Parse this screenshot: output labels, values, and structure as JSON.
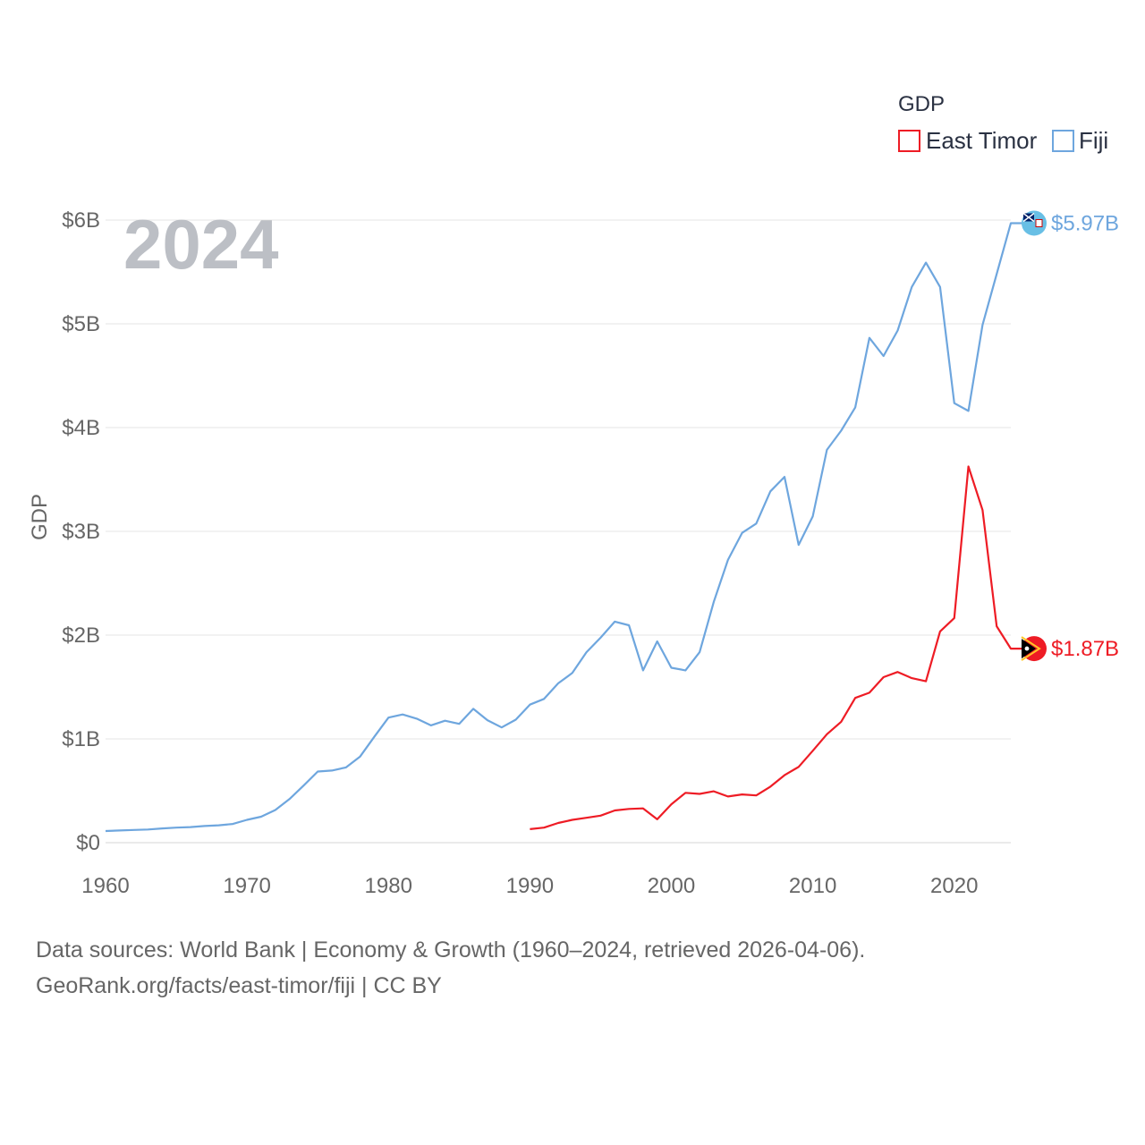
{
  "chart_data": {
    "type": "line",
    "ylabel": "GDP",
    "xlim": [
      1960,
      2024
    ],
    "ylim": [
      0,
      6000000000
    ],
    "x_ticks": [
      1960,
      1970,
      1980,
      1990,
      2000,
      2010,
      2020
    ],
    "x_tick_labels": [
      "1960",
      "1970",
      "1980",
      "1990",
      "2000",
      "2010",
      "2020"
    ],
    "y_ticks": [
      0,
      1000000000,
      2000000000,
      3000000000,
      4000000000,
      5000000000,
      6000000000
    ],
    "y_tick_labels": [
      "$0",
      "$1B",
      "$2B",
      "$3B",
      "$4B",
      "$5B",
      "$6B"
    ],
    "year_label": "2024",
    "legend": {
      "title": "GDP",
      "position": "top-right"
    },
    "grid": true,
    "series": [
      {
        "name": "East Timor",
        "color": "#ee1c25",
        "end_label": "$1.87B",
        "flag_icon": "east-timor-flag-icon",
        "x": [
          1990,
          1991,
          1992,
          1993,
          1994,
          1995,
          1996,
          1997,
          1998,
          1999,
          2000,
          2001,
          2002,
          2003,
          2004,
          2005,
          2006,
          2007,
          2008,
          2009,
          2010,
          2011,
          2012,
          2013,
          2014,
          2015,
          2016,
          2017,
          2018,
          2019,
          2020,
          2021,
          2022,
          2023,
          2024
        ],
        "values": [
          130000000,
          145000000,
          190000000,
          220000000,
          240000000,
          260000000,
          310000000,
          325000000,
          330000000,
          225000000,
          370000000,
          480000000,
          470000000,
          495000000,
          445000000,
          465000000,
          455000000,
          540000000,
          650000000,
          730000000,
          885000000,
          1045000000,
          1165000000,
          1395000000,
          1445000000,
          1595000000,
          1645000000,
          1585000000,
          1555000000,
          2035000000,
          2165000000,
          3625000000,
          3205000000,
          2085000000,
          1870000000
        ]
      },
      {
        "name": "Fiji",
        "color": "#6ea6de",
        "end_label": "$5.97B",
        "flag_icon": "fiji-flag-icon",
        "x": [
          1960,
          1961,
          1962,
          1963,
          1964,
          1965,
          1966,
          1967,
          1968,
          1969,
          1970,
          1971,
          1972,
          1973,
          1974,
          1975,
          1976,
          1977,
          1978,
          1979,
          1980,
          1981,
          1982,
          1983,
          1984,
          1985,
          1986,
          1987,
          1988,
          1989,
          1990,
          1991,
          1992,
          1993,
          1994,
          1995,
          1996,
          1997,
          1998,
          1999,
          2000,
          2001,
          2002,
          2003,
          2004,
          2005,
          2006,
          2007,
          2008,
          2009,
          2010,
          2011,
          2012,
          2013,
          2014,
          2015,
          2016,
          2017,
          2018,
          2019,
          2020,
          2021,
          2022,
          2023,
          2024
        ],
        "values": [
          112000000,
          117000000,
          122000000,
          127000000,
          137000000,
          145000000,
          150000000,
          160000000,
          167000000,
          180000000,
          220000000,
          250000000,
          315000000,
          420000000,
          550000000,
          685000000,
          695000000,
          725000000,
          830000000,
          1020000000,
          1205000000,
          1235000000,
          1195000000,
          1130000000,
          1175000000,
          1145000000,
          1290000000,
          1180000000,
          1110000000,
          1185000000,
          1330000000,
          1385000000,
          1535000000,
          1635000000,
          1835000000,
          1975000000,
          2130000000,
          2095000000,
          1660000000,
          1940000000,
          1685000000,
          1660000000,
          1835000000,
          2320000000,
          2725000000,
          2985000000,
          3075000000,
          3385000000,
          3525000000,
          2870000000,
          3145000000,
          3785000000,
          3970000000,
          4195000000,
          4865000000,
          4690000000,
          4935000000,
          5355000000,
          5590000000,
          5355000000,
          4235000000,
          4160000000,
          4990000000,
          5480000000,
          5970000000
        ]
      }
    ]
  },
  "source": {
    "line1": "Data sources: World Bank | Economy & Growth (1960–2024, retrieved 2026-04-06).",
    "line2": "GeoRank.org/facts/east-timor/fiji | CC BY"
  }
}
